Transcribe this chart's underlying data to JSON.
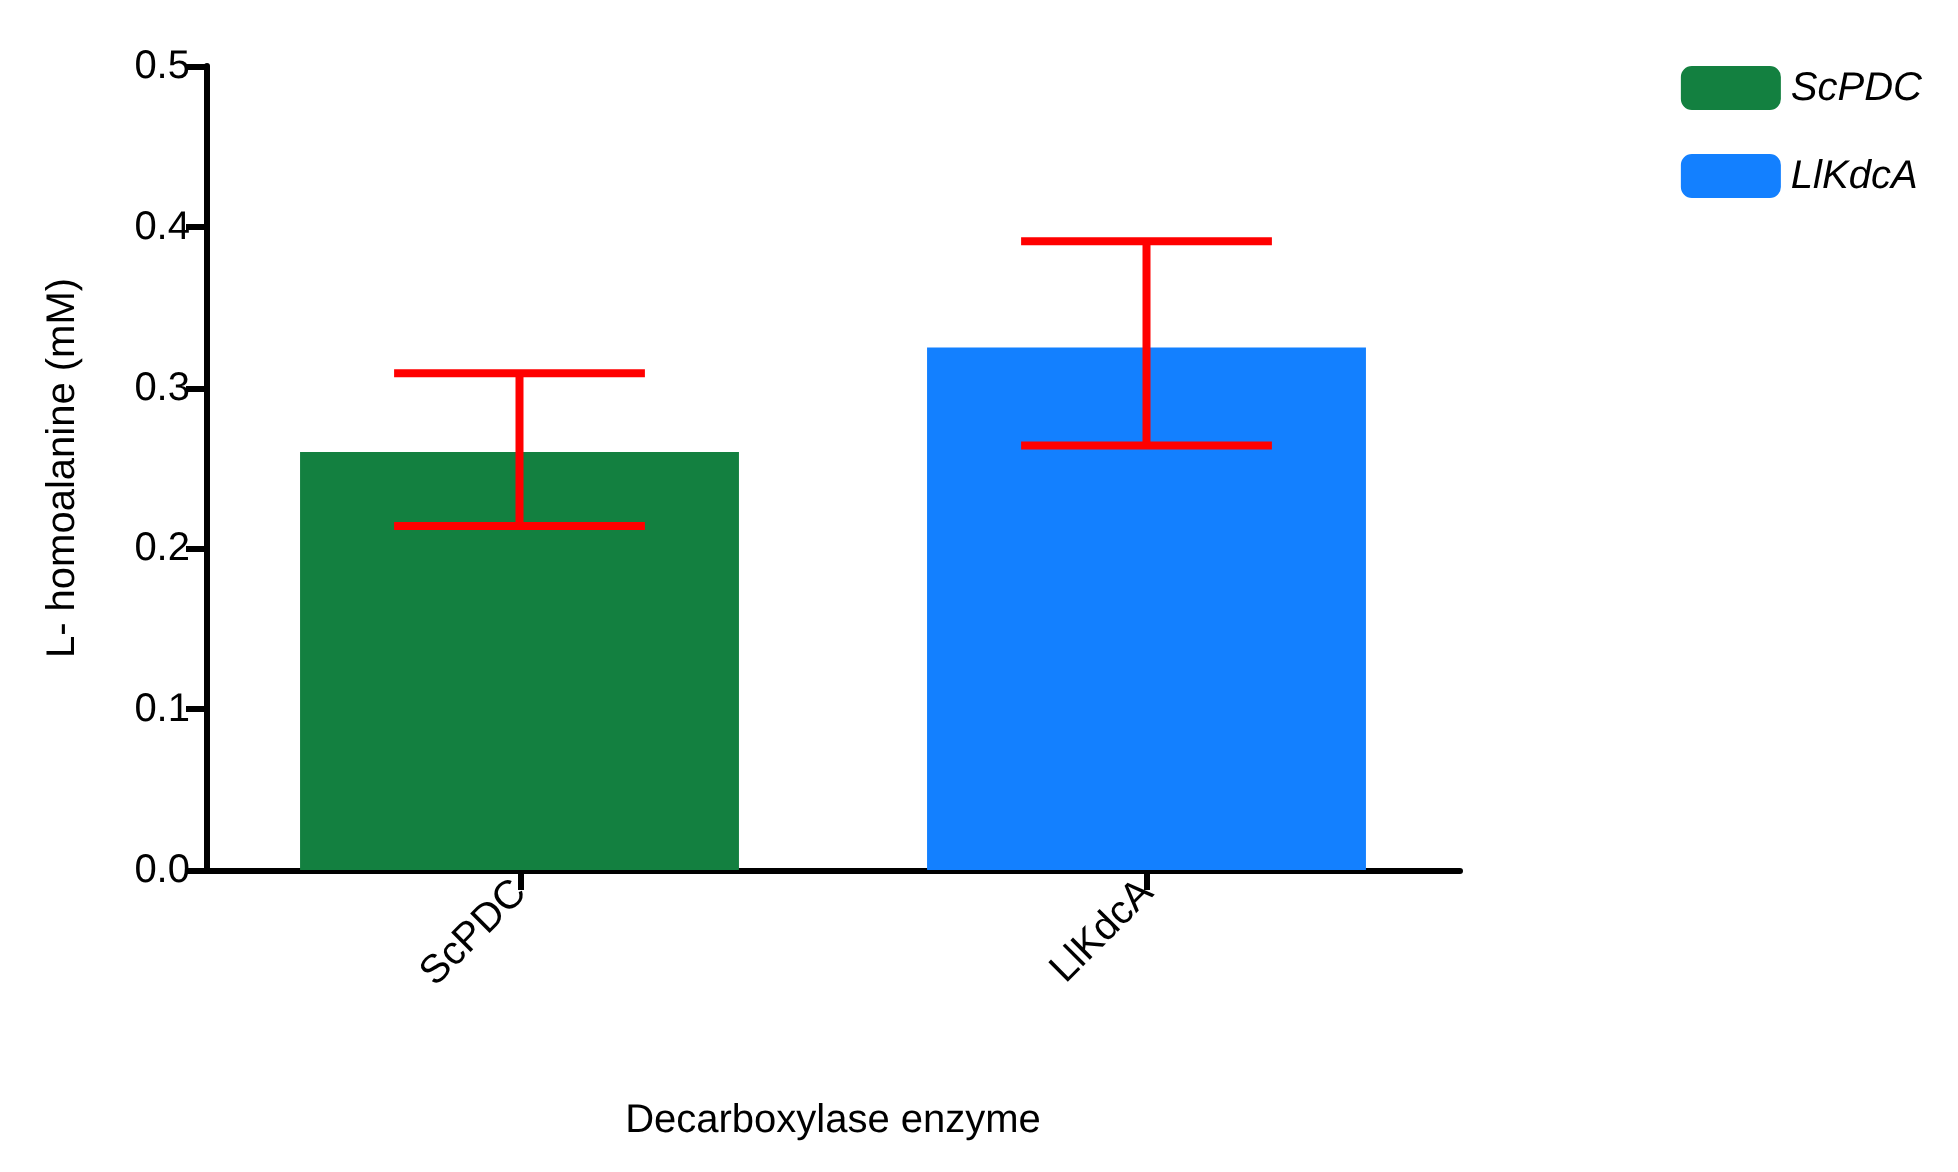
{
  "chart_data": {
    "type": "bar",
    "xlabel": "Decarboxylase enzyme",
    "ylabel": "L- homoalanine (mM)",
    "categories": [
      "ScPDC",
      "LlKdcA"
    ],
    "stacked": true,
    "series": [
      {
        "name": "ScPDC",
        "color": "#138040",
        "values": [
          0.26,
          null
        ],
        "errors": [
          [
            0.214,
            0.309
          ],
          null
        ]
      },
      {
        "name": "LlKdcA",
        "color": "#1380ff",
        "values": [
          null,
          0.325
        ],
        "errors": [
          null,
          [
            0.264,
            0.391
          ]
        ]
      }
    ],
    "ylim": [
      0,
      0.5
    ],
    "yticks": [
      {
        "value": 0,
        "label": "0.0"
      },
      {
        "value": 0.1,
        "label": "0.1"
      },
      {
        "value": 0.2,
        "label": "0.2"
      },
      {
        "value": 0.3,
        "label": "0.3"
      },
      {
        "value": 0.4,
        "label": "0.4"
      },
      {
        "value": 0.5,
        "label": "0.5"
      }
    ],
    "legend": "top right",
    "grid": false
  }
}
